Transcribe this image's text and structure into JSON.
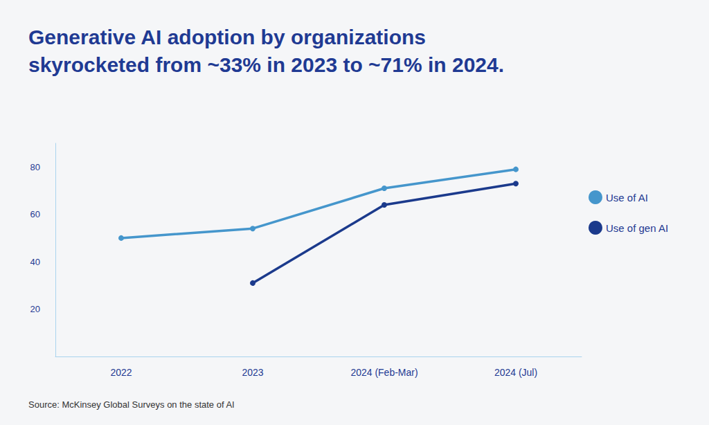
{
  "chart_data": {
    "type": "line",
    "title": "Generative AI adoption by organizations skyrocketed from ~33% in 2023 to ~71% in 2024.",
    "source": "Source: McKinsey Global Surveys on the state of AI",
    "categories": [
      "2022",
      "2023",
      "2024 (Feb-Mar)",
      "2024 (Jul)"
    ],
    "series": [
      {
        "name": "Use of AI",
        "color": "#4596cc",
        "values": [
          50,
          54,
          71,
          79
        ]
      },
      {
        "name": "Use of gen AI",
        "color": "#1b3a8c",
        "values": [
          null,
          31,
          64,
          73
        ]
      }
    ],
    "ylim": [
      0,
      90
    ],
    "yticks": [
      20,
      40,
      60,
      80
    ],
    "grid": false,
    "legend": "right",
    "marker": "circle"
  }
}
